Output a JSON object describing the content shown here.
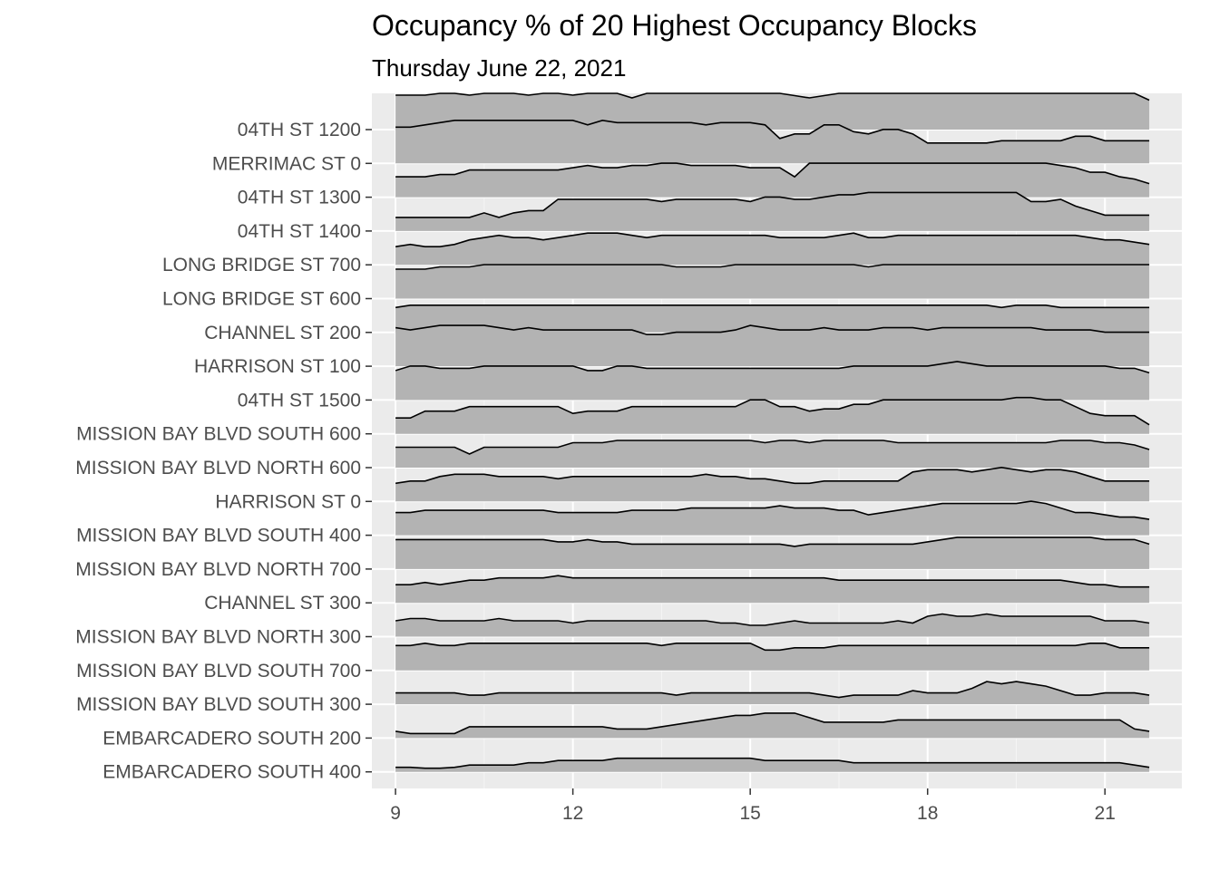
{
  "chart_data": {
    "type": "area",
    "title": "Occupancy % of 20 Highest Occupancy Blocks",
    "subtitle": "Thursday June 22, 2021",
    "xlabel": "",
    "ylabel": "",
    "x_ticks": [
      9,
      12,
      15,
      18,
      21
    ],
    "xlim": [
      8.6,
      22.3
    ],
    "grid": true,
    "legend": "none",
    "fill_color": "#b3b3b3",
    "panel_color": "#ebebeb",
    "x": [
      9,
      9.25,
      9.5,
      9.75,
      10,
      10.25,
      10.5,
      10.75,
      11,
      11.25,
      11.5,
      11.75,
      12,
      12.25,
      12.5,
      12.75,
      13,
      13.25,
      13.5,
      13.75,
      14,
      14.25,
      14.5,
      14.75,
      15,
      15.25,
      15.5,
      15.75,
      16,
      16.25,
      16.5,
      16.75,
      17,
      17.25,
      17.5,
      17.75,
      18,
      18.25,
      18.5,
      18.75,
      19,
      19.25,
      19.5,
      19.75,
      20,
      20.25,
      20.5,
      20.75,
      21,
      21.25,
      21.5,
      21.75
    ],
    "series": [
      {
        "name": "04TH ST 1200",
        "values": [
          76,
          76,
          76,
          80,
          80,
          76,
          80,
          80,
          80,
          76,
          80,
          80,
          76,
          80,
          80,
          80,
          70,
          80,
          85,
          80,
          80,
          80,
          80,
          80,
          85,
          80,
          80,
          75,
          70,
          75,
          80,
          80,
          80,
          80,
          85,
          85,
          85,
          90,
          90,
          90,
          90,
          85,
          90,
          90,
          90,
          90,
          90,
          90,
          85,
          80,
          80,
          65
        ]
      },
      {
        "name": "MERRIMAC ST 0",
        "values": [
          80,
          80,
          85,
          90,
          95,
          95,
          95,
          95,
          95,
          95,
          95,
          95,
          95,
          85,
          95,
          90,
          90,
          90,
          90,
          90,
          90,
          85,
          90,
          90,
          90,
          85,
          55,
          65,
          65,
          85,
          85,
          70,
          65,
          75,
          75,
          65,
          45,
          45,
          45,
          45,
          45,
          50,
          50,
          50,
          50,
          50,
          60,
          60,
          50,
          50,
          50,
          50
        ]
      },
      {
        "name": "04TH ST 1300",
        "values": [
          45,
          45,
          45,
          50,
          50,
          60,
          60,
          60,
          60,
          60,
          60,
          60,
          65,
          70,
          65,
          65,
          70,
          70,
          75,
          75,
          70,
          70,
          70,
          70,
          65,
          65,
          65,
          45,
          75,
          75,
          75,
          75,
          75,
          75,
          75,
          75,
          75,
          75,
          75,
          75,
          75,
          75,
          75,
          75,
          75,
          70,
          65,
          55,
          55,
          45,
          40,
          30
        ]
      },
      {
        "name": "04TH ST 1400",
        "values": [
          30,
          30,
          30,
          30,
          30,
          30,
          40,
          30,
          40,
          45,
          45,
          70,
          70,
          70,
          70,
          70,
          70,
          70,
          65,
          70,
          70,
          70,
          70,
          70,
          65,
          75,
          75,
          70,
          70,
          75,
          80,
          80,
          85,
          85,
          85,
          85,
          85,
          85,
          85,
          85,
          85,
          85,
          85,
          65,
          65,
          70,
          55,
          45,
          35,
          35,
          35,
          35
        ]
      },
      {
        "name": "LONG BRIDGE ST 700",
        "values": [
          40,
          45,
          40,
          40,
          45,
          55,
          60,
          65,
          60,
          60,
          55,
          60,
          65,
          70,
          70,
          70,
          65,
          60,
          65,
          65,
          65,
          65,
          65,
          65,
          65,
          65,
          60,
          60,
          60,
          60,
          65,
          70,
          60,
          60,
          65,
          65,
          65,
          65,
          65,
          65,
          65,
          65,
          65,
          65,
          65,
          65,
          65,
          60,
          55,
          55,
          50,
          45
        ]
      },
      {
        "name": "LONG BRIDGE ST 600",
        "values": [
          65,
          65,
          65,
          70,
          70,
          70,
          75,
          75,
          75,
          75,
          75,
          75,
          75,
          75,
          75,
          75,
          75,
          75,
          75,
          70,
          70,
          70,
          70,
          75,
          75,
          75,
          75,
          75,
          75,
          75,
          75,
          75,
          70,
          75,
          75,
          75,
          75,
          75,
          75,
          75,
          75,
          75,
          75,
          75,
          75,
          75,
          75,
          75,
          75,
          75,
          75,
          75
        ]
      },
      {
        "name": "CHANNEL ST 200",
        "values": [
          55,
          60,
          60,
          60,
          60,
          60,
          60,
          60,
          60,
          60,
          60,
          60,
          60,
          60,
          60,
          60,
          60,
          60,
          60,
          60,
          60,
          60,
          60,
          60,
          60,
          60,
          60,
          60,
          60,
          60,
          60,
          60,
          60,
          60,
          60,
          60,
          60,
          60,
          60,
          60,
          60,
          55,
          60,
          60,
          60,
          55,
          55,
          55,
          55,
          55,
          55,
          55
        ]
      },
      {
        "name": "HARRISON ST 100",
        "values": [
          85,
          80,
          85,
          90,
          90,
          90,
          90,
          85,
          80,
          85,
          80,
          80,
          80,
          80,
          80,
          80,
          80,
          70,
          70,
          75,
          75,
          75,
          75,
          80,
          90,
          85,
          80,
          80,
          80,
          85,
          80,
          80,
          80,
          85,
          85,
          85,
          80,
          85,
          85,
          85,
          85,
          85,
          85,
          85,
          80,
          80,
          80,
          80,
          75,
          75,
          75,
          75
        ]
      },
      {
        "name": "04TH ST 1500",
        "values": [
          65,
          75,
          75,
          70,
          70,
          70,
          75,
          75,
          75,
          75,
          75,
          75,
          75,
          65,
          65,
          75,
          75,
          70,
          70,
          70,
          70,
          70,
          70,
          70,
          70,
          70,
          70,
          70,
          70,
          70,
          70,
          75,
          75,
          75,
          75,
          75,
          75,
          80,
          85,
          80,
          75,
          75,
          75,
          75,
          75,
          75,
          75,
          75,
          75,
          70,
          70,
          60
        ]
      },
      {
        "name": "MISSION BAY BLVD SOUTH 600",
        "values": [
          35,
          35,
          50,
          50,
          50,
          60,
          60,
          60,
          60,
          60,
          60,
          60,
          45,
          50,
          50,
          50,
          60,
          60,
          60,
          60,
          60,
          60,
          60,
          60,
          75,
          75,
          60,
          60,
          50,
          55,
          55,
          65,
          65,
          75,
          75,
          75,
          75,
          75,
          75,
          75,
          75,
          75,
          80,
          80,
          75,
          75,
          60,
          45,
          40,
          40,
          40,
          20
        ]
      },
      {
        "name": "MISSION BAY BLVD NORTH 600",
        "values": [
          45,
          45,
          45,
          45,
          45,
          30,
          45,
          45,
          45,
          45,
          45,
          45,
          55,
          55,
          55,
          60,
          60,
          60,
          60,
          60,
          60,
          60,
          60,
          60,
          60,
          55,
          60,
          60,
          55,
          60,
          60,
          60,
          60,
          60,
          55,
          55,
          55,
          55,
          55,
          55,
          55,
          55,
          55,
          55,
          55,
          60,
          60,
          60,
          55,
          55,
          50,
          40
        ]
      },
      {
        "name": "HARRISON ST 0",
        "values": [
          40,
          45,
          45,
          55,
          60,
          60,
          60,
          55,
          55,
          55,
          55,
          50,
          55,
          55,
          55,
          55,
          55,
          55,
          55,
          55,
          55,
          60,
          55,
          55,
          50,
          50,
          45,
          40,
          40,
          45,
          45,
          45,
          45,
          45,
          45,
          65,
          70,
          70,
          70,
          65,
          70,
          75,
          70,
          65,
          70,
          70,
          65,
          55,
          45,
          45,
          45,
          45
        ]
      },
      {
        "name": "MISSION BAY BLVD SOUTH 400",
        "values": [
          50,
          50,
          55,
          55,
          55,
          55,
          55,
          55,
          55,
          55,
          55,
          50,
          50,
          50,
          50,
          50,
          55,
          55,
          55,
          55,
          60,
          60,
          60,
          60,
          60,
          60,
          65,
          60,
          60,
          60,
          55,
          55,
          45,
          50,
          55,
          60,
          65,
          70,
          70,
          70,
          70,
          70,
          70,
          75,
          70,
          60,
          50,
          50,
          45,
          40,
          40,
          35
        ]
      },
      {
        "name": "MISSION BAY BLVD NORTH 700",
        "values": [
          65,
          65,
          65,
          65,
          65,
          65,
          65,
          65,
          65,
          65,
          65,
          60,
          60,
          65,
          60,
          60,
          55,
          55,
          55,
          55,
          55,
          55,
          55,
          55,
          55,
          55,
          55,
          50,
          55,
          55,
          55,
          55,
          55,
          55,
          55,
          55,
          60,
          65,
          70,
          70,
          70,
          70,
          70,
          70,
          70,
          70,
          70,
          70,
          65,
          65,
          65,
          55
        ]
      },
      {
        "name": "CHANNEL ST 300",
        "values": [
          40,
          40,
          45,
          40,
          45,
          50,
          50,
          55,
          55,
          55,
          55,
          60,
          55,
          55,
          55,
          55,
          55,
          55,
          55,
          55,
          55,
          55,
          55,
          55,
          55,
          55,
          55,
          55,
          55,
          55,
          50,
          50,
          50,
          50,
          50,
          50,
          50,
          50,
          50,
          50,
          50,
          50,
          50,
          50,
          50,
          50,
          45,
          40,
          40,
          35,
          35,
          35
        ]
      },
      {
        "name": "MISSION BAY BLVD NORTH 300",
        "values": [
          35,
          40,
          40,
          35,
          35,
          35,
          35,
          40,
          35,
          35,
          35,
          35,
          30,
          35,
          35,
          35,
          35,
          35,
          35,
          35,
          35,
          35,
          30,
          30,
          25,
          25,
          30,
          35,
          30,
          30,
          30,
          30,
          30,
          30,
          35,
          30,
          45,
          50,
          45,
          45,
          50,
          45,
          45,
          45,
          45,
          45,
          45,
          45,
          35,
          35,
          35,
          30
        ]
      },
      {
        "name": "MISSION BAY BLVD SOUTH 700",
        "values": [
          55,
          55,
          60,
          55,
          55,
          60,
          60,
          60,
          60,
          60,
          60,
          60,
          60,
          60,
          60,
          60,
          60,
          60,
          55,
          60,
          60,
          60,
          60,
          60,
          60,
          45,
          45,
          50,
          50,
          50,
          55,
          55,
          55,
          55,
          55,
          55,
          55,
          55,
          55,
          55,
          55,
          55,
          55,
          55,
          55,
          55,
          55,
          60,
          60,
          50,
          50,
          50
        ]
      },
      {
        "name": "MISSION BAY BLVD SOUTH 300",
        "values": [
          25,
          25,
          25,
          25,
          25,
          20,
          20,
          25,
          25,
          25,
          25,
          25,
          25,
          25,
          25,
          25,
          25,
          25,
          25,
          20,
          25,
          25,
          25,
          25,
          25,
          25,
          25,
          25,
          25,
          20,
          15,
          20,
          20,
          20,
          20,
          30,
          25,
          25,
          25,
          35,
          50,
          45,
          50,
          45,
          40,
          30,
          20,
          20,
          25,
          25,
          25,
          20
        ]
      },
      {
        "name": "EMBARCADERO SOUTH 200",
        "values": [
          15,
          10,
          10,
          10,
          10,
          25,
          25,
          25,
          25,
          25,
          25,
          25,
          25,
          25,
          25,
          20,
          20,
          20,
          25,
          30,
          35,
          40,
          45,
          50,
          50,
          55,
          55,
          55,
          45,
          35,
          35,
          35,
          35,
          35,
          40,
          40,
          40,
          40,
          40,
          40,
          40,
          40,
          40,
          40,
          40,
          40,
          40,
          40,
          40,
          40,
          20,
          15
        ]
      },
      {
        "name": "EMBARCADERO SOUTH 400",
        "values": [
          10,
          10,
          8,
          8,
          10,
          15,
          15,
          15,
          15,
          20,
          20,
          25,
          25,
          25,
          25,
          30,
          30,
          30,
          30,
          30,
          30,
          30,
          30,
          30,
          30,
          25,
          25,
          25,
          25,
          25,
          25,
          20,
          20,
          20,
          20,
          20,
          20,
          20,
          20,
          20,
          20,
          20,
          20,
          20,
          20,
          20,
          20,
          20,
          20,
          20,
          15,
          10
        ]
      }
    ]
  }
}
